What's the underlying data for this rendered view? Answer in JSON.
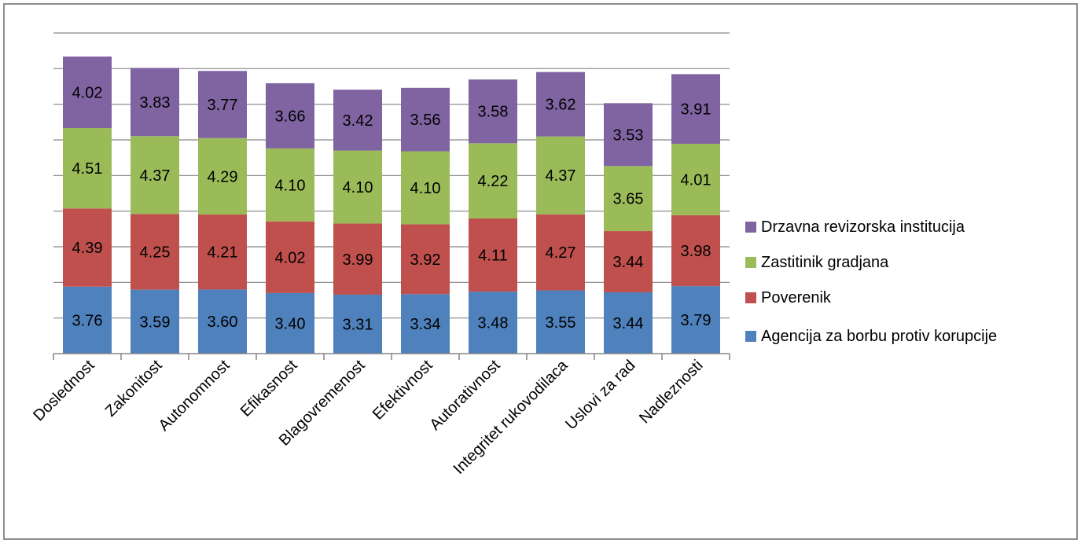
{
  "chart_data": {
    "type": "bar",
    "stacked": true,
    "categories": [
      "Doslednost",
      "Zakonitost",
      "Autonomnost",
      "Efikasnost",
      "Blagovremenost",
      "Efektivnost",
      "Autorativnost",
      "Integritet rukovodilaca",
      "Uslovi za rad",
      "Nadleznosti"
    ],
    "series": [
      {
        "name": "Agencija za borbu protiv korupcije",
        "color": "#4f81bd",
        "values": [
          3.76,
          3.59,
          3.6,
          3.4,
          3.31,
          3.34,
          3.48,
          3.55,
          3.44,
          3.79
        ]
      },
      {
        "name": "Poverenik",
        "color": "#c0504d",
        "values": [
          4.39,
          4.25,
          4.21,
          4.02,
          3.99,
          3.92,
          4.11,
          4.27,
          3.44,
          3.98
        ]
      },
      {
        "name": "Zastitinik gradjana",
        "color": "#9bbb59",
        "values": [
          4.51,
          4.37,
          4.29,
          4.1,
          4.1,
          4.1,
          4.22,
          4.37,
          3.65,
          4.01
        ]
      },
      {
        "name": "Drzavna revizorska institucija",
        "color": "#8064a2",
        "values": [
          4.02,
          3.83,
          3.77,
          3.66,
          3.42,
          3.56,
          3.58,
          3.62,
          3.53,
          3.91
        ]
      }
    ],
    "ylim": [
      0,
      18
    ],
    "grid": true,
    "legend_position": "right",
    "title": "",
    "xlabel": "",
    "ylabel": ""
  }
}
